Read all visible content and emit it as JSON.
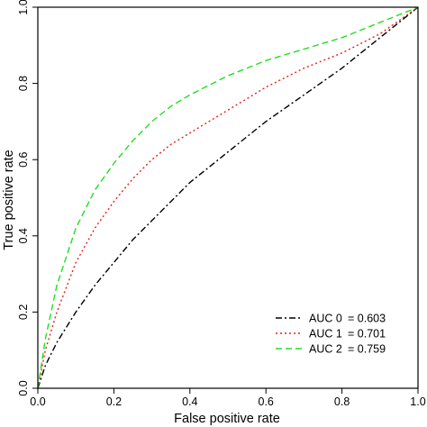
{
  "chart_data": {
    "type": "line",
    "xlabel": "False positive rate",
    "ylabel": "True positive rate",
    "xlim": [
      0,
      1
    ],
    "ylim": [
      0,
      1
    ],
    "x_ticks": [
      "0.0",
      "0.2",
      "0.4",
      "0.6",
      "0.8",
      "1.0"
    ],
    "y_ticks": [
      "0.0",
      "0.2",
      "0.4",
      "0.6",
      "0.8",
      "1.0"
    ],
    "grid": false,
    "legend_position": "bottom-right",
    "series": [
      {
        "name": "AUC 0 = 0.603",
        "color": "#000000",
        "dash": "dashdot",
        "x": [
          0,
          0.02,
          0.05,
          0.1,
          0.15,
          0.2,
          0.25,
          0.3,
          0.35,
          0.4,
          0.5,
          0.6,
          0.7,
          0.8,
          0.9,
          1.0
        ],
        "y": [
          0,
          0.06,
          0.12,
          0.2,
          0.27,
          0.33,
          0.39,
          0.44,
          0.49,
          0.54,
          0.62,
          0.7,
          0.77,
          0.84,
          0.92,
          1.0
        ]
      },
      {
        "name": "AUC 1 = 0.701",
        "color": "#e8201a",
        "dash": "dotted",
        "x": [
          0,
          0.02,
          0.05,
          0.1,
          0.15,
          0.2,
          0.25,
          0.3,
          0.35,
          0.4,
          0.5,
          0.6,
          0.7,
          0.8,
          0.9,
          1.0
        ],
        "y": [
          0,
          0.1,
          0.2,
          0.33,
          0.42,
          0.49,
          0.55,
          0.6,
          0.64,
          0.67,
          0.73,
          0.79,
          0.84,
          0.88,
          0.93,
          1.0
        ]
      },
      {
        "name": "AUC 2 = 0.759",
        "color": "#22dd22",
        "dash": "dashed",
        "x": [
          0,
          0.02,
          0.05,
          0.1,
          0.15,
          0.2,
          0.25,
          0.3,
          0.35,
          0.4,
          0.5,
          0.6,
          0.7,
          0.8,
          0.9,
          1.0
        ],
        "y": [
          0,
          0.13,
          0.27,
          0.42,
          0.52,
          0.59,
          0.65,
          0.7,
          0.74,
          0.77,
          0.82,
          0.86,
          0.89,
          0.92,
          0.96,
          1.0
        ]
      }
    ]
  },
  "legend": {
    "entries": [
      {
        "label": "AUC 0",
        "value": "= 0.603"
      },
      {
        "label": "AUC 1",
        "value": "= 0.701"
      },
      {
        "label": "AUC 2",
        "value": "= 0.759"
      }
    ]
  }
}
